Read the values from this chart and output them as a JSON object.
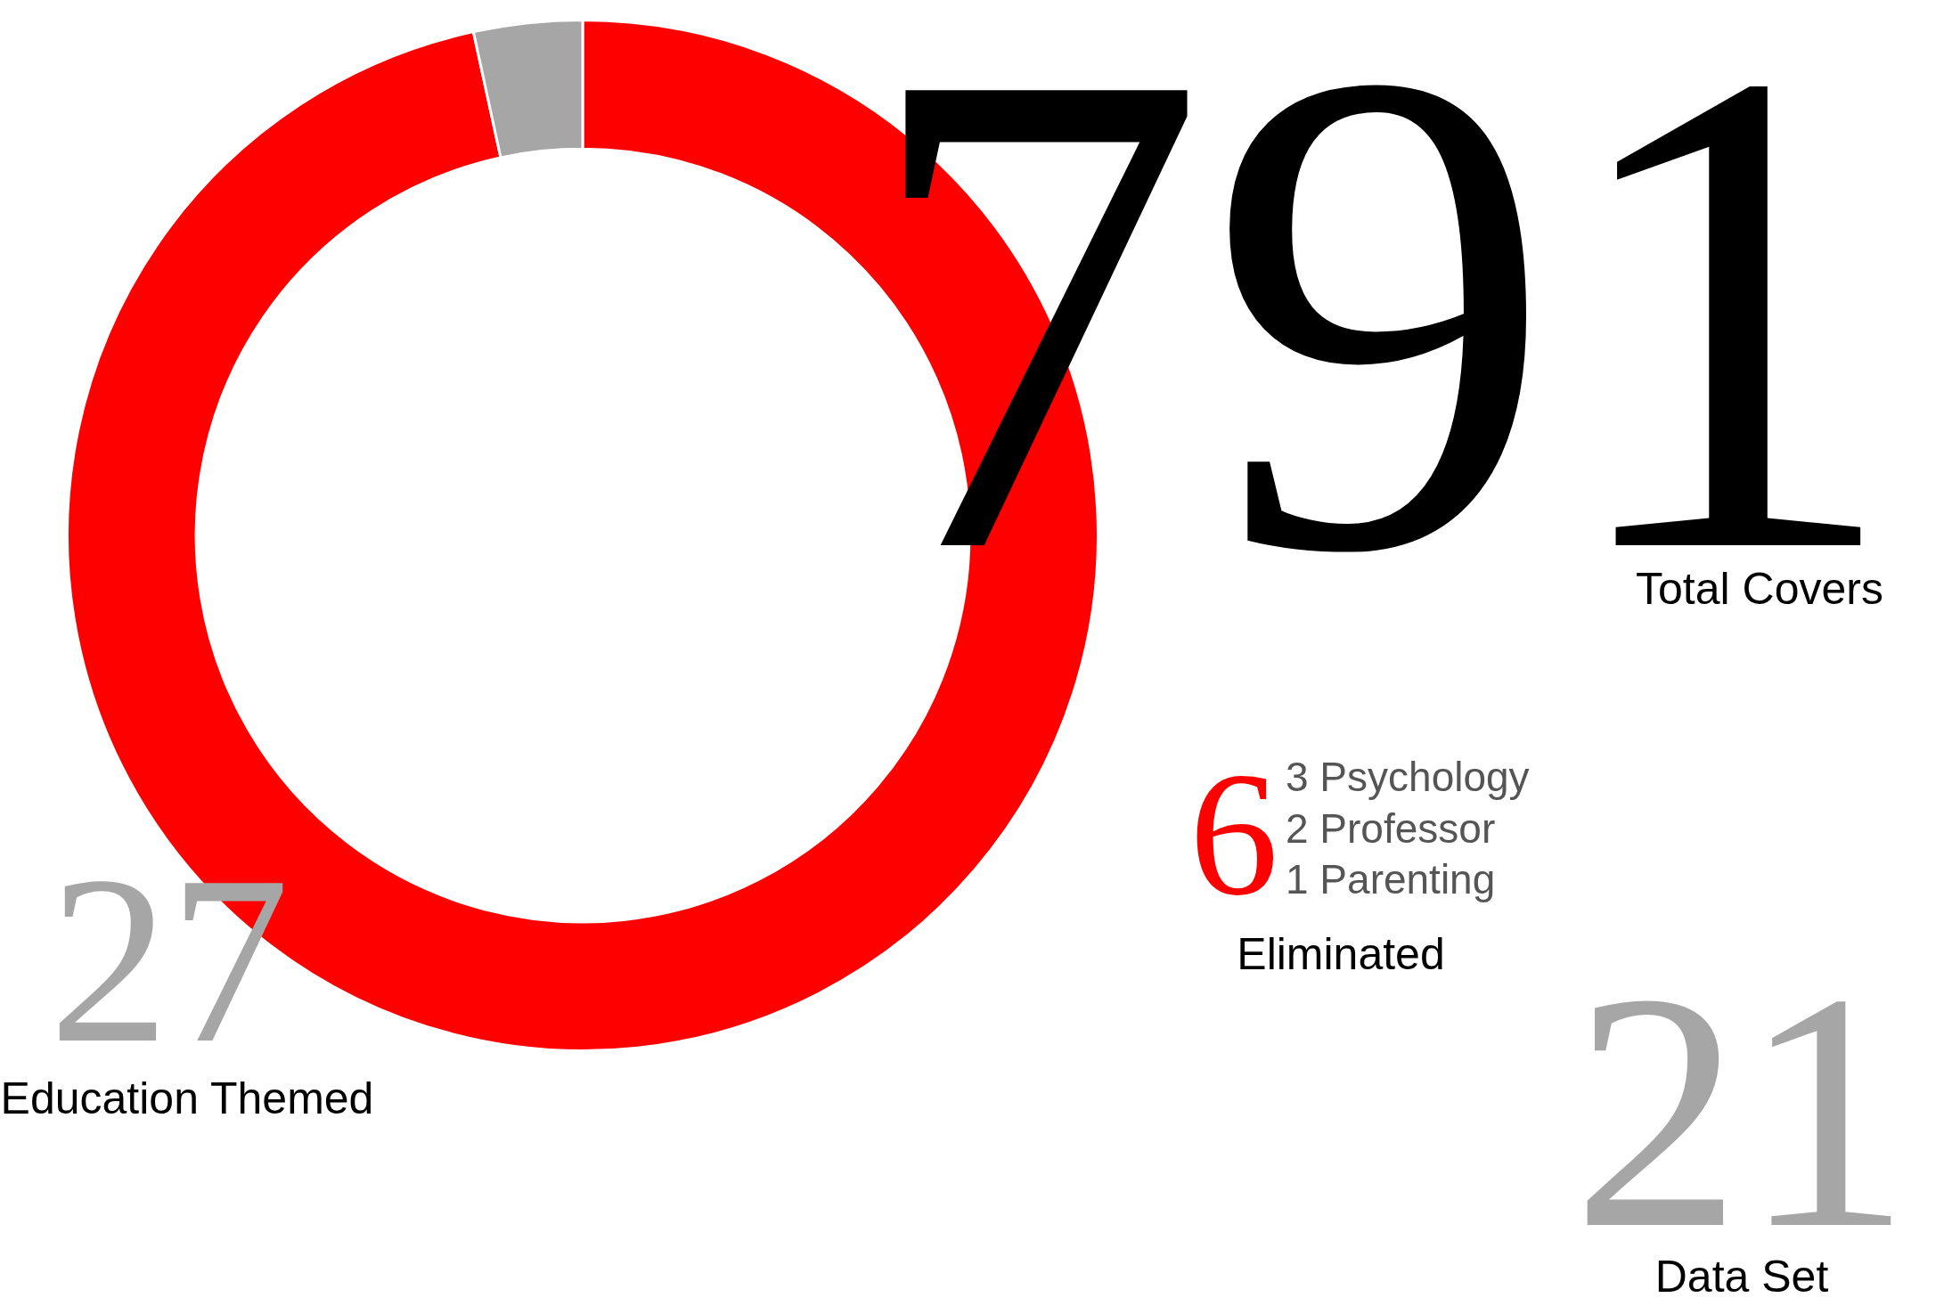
{
  "chart_data": {
    "type": "donut",
    "categories": [
      null,
      null
    ],
    "values": [
      96.6,
      3.4
    ],
    "colors": [
      "#ff0000",
      "#a6a6a6"
    ],
    "legend": false,
    "annotations": [
      "27",
      "Education Themed",
      "791",
      "Total Covers",
      "6",
      "3 Psychology",
      "2 Professor",
      "1 Parenting",
      "Eliminated",
      "21",
      "Data Set"
    ]
  }
}
